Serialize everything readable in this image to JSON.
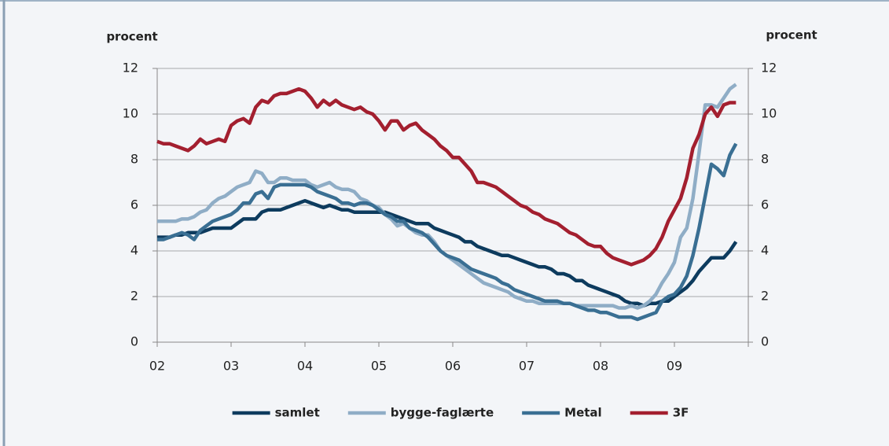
{
  "chart_data": {
    "type": "line",
    "y_label": "procent",
    "y2_label": "procent",
    "categories": [
      "02",
      null,
      null,
      null,
      null,
      null,
      null,
      null,
      null,
      null,
      null,
      null,
      "03",
      null,
      null,
      null,
      null,
      null,
      null,
      null,
      null,
      null,
      null,
      null,
      "04",
      null,
      null,
      null,
      null,
      null,
      null,
      null,
      null,
      null,
      null,
      null,
      "05",
      null,
      null,
      null,
      null,
      null,
      null,
      null,
      null,
      null,
      null,
      null,
      "06",
      null,
      null,
      null,
      null,
      null,
      null,
      null,
      null,
      null,
      null,
      null,
      "07",
      null,
      null,
      null,
      null,
      null,
      null,
      null,
      null,
      null,
      null,
      null,
      "08",
      null,
      null,
      null,
      null,
      null,
      null,
      null,
      null,
      null,
      null,
      null,
      "09",
      null,
      null,
      null,
      null,
      null,
      null,
      null,
      null,
      null,
      null
    ],
    "ylim": [
      0,
      12
    ],
    "yticks": [
      0,
      2,
      4,
      6,
      8,
      10,
      12
    ],
    "y2lim": [
      0,
      12
    ],
    "y2ticks": [
      0,
      2,
      4,
      6,
      8,
      10,
      12
    ],
    "grid": true,
    "legend": "bottom",
    "series": [
      {
        "name": "samlet",
        "color": "#0d3b5e",
        "values": [
          4.6,
          4.6,
          4.6,
          4.7,
          4.7,
          4.8,
          4.8,
          4.8,
          4.9,
          5.0,
          5.0,
          5.0,
          5.0,
          5.2,
          5.4,
          5.4,
          5.4,
          5.7,
          5.8,
          5.8,
          5.8,
          5.9,
          6.0,
          6.1,
          6.2,
          6.1,
          6.0,
          5.9,
          6.0,
          5.9,
          5.8,
          5.8,
          5.7,
          5.7,
          5.7,
          5.7,
          5.7,
          5.7,
          5.6,
          5.5,
          5.4,
          5.3,
          5.2,
          5.2,
          5.2,
          5.0,
          4.9,
          4.8,
          4.7,
          4.6,
          4.4,
          4.4,
          4.2,
          4.1,
          4.0,
          3.9,
          3.8,
          3.8,
          3.7,
          3.6,
          3.5,
          3.4,
          3.3,
          3.3,
          3.2,
          3.0,
          3.0,
          2.9,
          2.7,
          2.7,
          2.5,
          2.4,
          2.3,
          2.2,
          2.1,
          2.0,
          1.8,
          1.7,
          1.7,
          1.6,
          1.7,
          1.7,
          1.8,
          1.8,
          2.0,
          2.2,
          2.4,
          2.7,
          3.1,
          3.4,
          3.7,
          3.7,
          3.7,
          4.0,
          4.4
        ]
      },
      {
        "name": "bygge-faglærte",
        "color": "#8fadc6",
        "values": [
          5.3,
          5.3,
          5.3,
          5.3,
          5.4,
          5.4,
          5.5,
          5.7,
          5.8,
          6.1,
          6.3,
          6.4,
          6.6,
          6.8,
          6.9,
          7.0,
          7.5,
          7.4,
          7.0,
          7.0,
          7.2,
          7.2,
          7.1,
          7.1,
          7.1,
          6.9,
          6.8,
          6.9,
          7.0,
          6.8,
          6.7,
          6.7,
          6.6,
          6.3,
          6.2,
          6.0,
          5.9,
          5.6,
          5.4,
          5.1,
          5.2,
          5.0,
          4.8,
          4.7,
          4.7,
          4.4,
          4.0,
          3.8,
          3.6,
          3.4,
          3.2,
          3.0,
          2.8,
          2.6,
          2.5,
          2.4,
          2.3,
          2.2,
          2.0,
          1.9,
          1.8,
          1.8,
          1.7,
          1.7,
          1.7,
          1.7,
          1.7,
          1.7,
          1.6,
          1.6,
          1.6,
          1.6,
          1.6,
          1.6,
          1.6,
          1.5,
          1.5,
          1.6,
          1.5,
          1.6,
          1.8,
          2.1,
          2.6,
          3.0,
          3.5,
          4.6,
          5.0,
          6.3,
          8.3,
          10.4,
          10.4,
          10.3,
          10.7,
          11.1,
          11.3
        ]
      },
      {
        "name": "Metal",
        "color": "#3a6f93",
        "values": [
          4.5,
          4.5,
          4.6,
          4.7,
          4.8,
          4.7,
          4.5,
          4.9,
          5.1,
          5.3,
          5.4,
          5.5,
          5.6,
          5.8,
          6.1,
          6.1,
          6.5,
          6.6,
          6.3,
          6.8,
          6.9,
          6.9,
          6.9,
          6.9,
          6.9,
          6.8,
          6.6,
          6.5,
          6.4,
          6.3,
          6.1,
          6.1,
          6.0,
          6.1,
          6.1,
          6.0,
          5.8,
          5.6,
          5.5,
          5.3,
          5.3,
          5.0,
          4.9,
          4.8,
          4.6,
          4.3,
          4.0,
          3.8,
          3.7,
          3.6,
          3.4,
          3.2,
          3.1,
          3.0,
          2.9,
          2.8,
          2.6,
          2.5,
          2.3,
          2.2,
          2.1,
          2.0,
          1.9,
          1.8,
          1.8,
          1.8,
          1.7,
          1.7,
          1.6,
          1.5,
          1.4,
          1.4,
          1.3,
          1.3,
          1.2,
          1.1,
          1.1,
          1.1,
          1.0,
          1.1,
          1.2,
          1.3,
          1.8,
          2.0,
          2.1,
          2.4,
          2.9,
          3.8,
          5.0,
          6.4,
          7.8,
          7.6,
          7.3,
          8.2,
          8.7
        ]
      },
      {
        "name": "3F",
        "color": "#a31f2f",
        "values": [
          8.8,
          8.7,
          8.7,
          8.6,
          8.5,
          8.4,
          8.6,
          8.9,
          8.7,
          8.8,
          8.9,
          8.8,
          9.5,
          9.7,
          9.8,
          9.6,
          10.3,
          10.6,
          10.5,
          10.8,
          10.9,
          10.9,
          11.0,
          11.1,
          11.0,
          10.7,
          10.3,
          10.6,
          10.4,
          10.6,
          10.4,
          10.3,
          10.2,
          10.3,
          10.1,
          10.0,
          9.7,
          9.3,
          9.7,
          9.7,
          9.3,
          9.5,
          9.6,
          9.3,
          9.1,
          8.9,
          8.6,
          8.4,
          8.1,
          8.1,
          7.8,
          7.5,
          7.0,
          7.0,
          6.9,
          6.8,
          6.6,
          6.4,
          6.2,
          6.0,
          5.9,
          5.7,
          5.6,
          5.4,
          5.3,
          5.2,
          5.0,
          4.8,
          4.7,
          4.5,
          4.3,
          4.2,
          4.2,
          3.9,
          3.7,
          3.6,
          3.5,
          3.4,
          3.5,
          3.6,
          3.8,
          4.1,
          4.6,
          5.3,
          5.8,
          6.3,
          7.2,
          8.5,
          9.1,
          10.0,
          10.3,
          9.9,
          10.4,
          10.5,
          10.5
        ]
      }
    ]
  }
}
